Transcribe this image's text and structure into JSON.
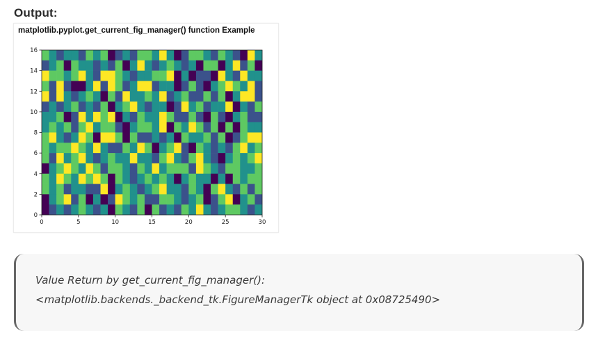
{
  "heading": "Output:",
  "figure": {
    "title": "matplotlib.pyplot.get_current_fig_manager() function Example"
  },
  "output": {
    "line1": "Value Return by get_current_fig_manager():",
    "line2": "<matplotlib.backends._backend_tk.FigureManagerTk object at 0x08725490>"
  },
  "chart_data": {
    "type": "heatmap",
    "title": "matplotlib.pyplot.get_current_fig_manager() function Example",
    "xlabel": "",
    "ylabel": "",
    "xlim": [
      0,
      30
    ],
    "ylim": [
      0,
      16
    ],
    "xticks": [
      0,
      5,
      10,
      15,
      20,
      25,
      30
    ],
    "yticks": [
      0,
      2,
      4,
      6,
      8,
      10,
      12,
      14,
      16
    ],
    "colormap": "viridis",
    "colormap_stops": [
      "#440154",
      "#3b528b",
      "#21918c",
      "#5ec962",
      "#fde725"
    ],
    "grid": false,
    "rows": [
      [
        3,
        2,
        1,
        2,
        2,
        1,
        3,
        2,
        3,
        0,
        1,
        2,
        1,
        3,
        3,
        2,
        4,
        2,
        0,
        1,
        3,
        3,
        2,
        1,
        3,
        2,
        1,
        0,
        4,
        2
      ],
      [
        1,
        2,
        3,
        0,
        3,
        2,
        2,
        1,
        2,
        1,
        3,
        0,
        2,
        4,
        2,
        1,
        2,
        3,
        2,
        1,
        2,
        0,
        3,
        3,
        0,
        2,
        4,
        1,
        3,
        0
      ],
      [
        4,
        3,
        3,
        2,
        3,
        4,
        2,
        1,
        4,
        4,
        3,
        2,
        1,
        2,
        2,
        3,
        3,
        4,
        0,
        2,
        0,
        1,
        1,
        0,
        4,
        2,
        1,
        4,
        2,
        2
      ],
      [
        3,
        1,
        4,
        1,
        0,
        0,
        2,
        4,
        1,
        4,
        3,
        1,
        2,
        4,
        4,
        1,
        2,
        2,
        0,
        1,
        3,
        1,
        0,
        2,
        3,
        4,
        3,
        2,
        4,
        1
      ],
      [
        4,
        1,
        4,
        2,
        1,
        2,
        3,
        2,
        0,
        3,
        1,
        4,
        2,
        2,
        3,
        2,
        4,
        1,
        2,
        3,
        1,
        1,
        3,
        1,
        3,
        0,
        2,
        4,
        4,
        1
      ],
      [
        1,
        2,
        1,
        2,
        3,
        1,
        2,
        1,
        3,
        0,
        2,
        3,
        4,
        2,
        1,
        2,
        2,
        0,
        1,
        4,
        2,
        3,
        1,
        2,
        2,
        4,
        0,
        2,
        1,
        3
      ],
      [
        2,
        2,
        3,
        0,
        1,
        4,
        2,
        4,
        3,
        4,
        0,
        2,
        1,
        3,
        2,
        2,
        4,
        3,
        1,
        1,
        3,
        1,
        0,
        3,
        1,
        0,
        2,
        3,
        1,
        1
      ],
      [
        2,
        3,
        2,
        3,
        1,
        3,
        4,
        2,
        3,
        3,
        1,
        0,
        2,
        3,
        3,
        2,
        4,
        0,
        3,
        2,
        4,
        3,
        1,
        3,
        0,
        3,
        0,
        3,
        2,
        2
      ],
      [
        3,
        4,
        2,
        1,
        2,
        4,
        3,
        0,
        4,
        4,
        3,
        0,
        3,
        1,
        1,
        2,
        1,
        2,
        0,
        3,
        2,
        2,
        3,
        1,
        3,
        0,
        1,
        3,
        4,
        4
      ],
      [
        3,
        2,
        3,
        3,
        4,
        3,
        2,
        4,
        2,
        1,
        1,
        3,
        2,
        4,
        3,
        0,
        2,
        3,
        4,
        1,
        0,
        3,
        2,
        1,
        2,
        1,
        3,
        4,
        2,
        3
      ],
      [
        3,
        1,
        4,
        2,
        3,
        4,
        2,
        1,
        2,
        3,
        2,
        2,
        4,
        2,
        2,
        1,
        3,
        4,
        2,
        1,
        3,
        4,
        2,
        1,
        0,
        2,
        3,
        2,
        3,
        4
      ],
      [
        0,
        2,
        3,
        4,
        3,
        2,
        4,
        3,
        1,
        3,
        3,
        2,
        1,
        3,
        2,
        4,
        2,
        3,
        3,
        3,
        1,
        4,
        3,
        2,
        1,
        3,
        3,
        2,
        2,
        3
      ],
      [
        3,
        2,
        4,
        3,
        2,
        4,
        3,
        4,
        3,
        0,
        3,
        2,
        1,
        2,
        3,
        2,
        3,
        2,
        0,
        2,
        3,
        2,
        2,
        0,
        2,
        0,
        3,
        2,
        3,
        3
      ],
      [
        3,
        2,
        3,
        1,
        2,
        2,
        1,
        1,
        4,
        0,
        2,
        3,
        2,
        1,
        2,
        3,
        4,
        2,
        2,
        1,
        3,
        2,
        0,
        3,
        4,
        2,
        1,
        3,
        1,
        3
      ],
      [
        0,
        2,
        3,
        4,
        1,
        3,
        0,
        2,
        0,
        1,
        4,
        3,
        2,
        3,
        1,
        1,
        3,
        3,
        2,
        1,
        2,
        3,
        0,
        1,
        3,
        4,
        0,
        2,
        3,
        1
      ],
      [
        0,
        1,
        2,
        1,
        2,
        3,
        2,
        1,
        2,
        0,
        3,
        2,
        1,
        3,
        0,
        3,
        1,
        2,
        1,
        3,
        2,
        4,
        2,
        1,
        2,
        3,
        3,
        2,
        1,
        2
      ]
    ]
  }
}
